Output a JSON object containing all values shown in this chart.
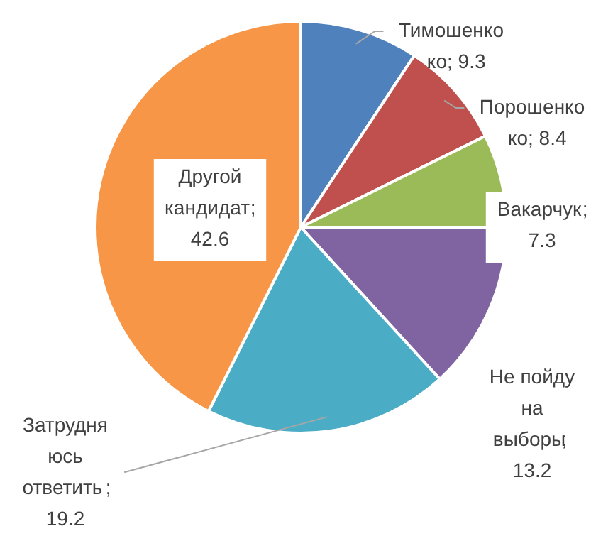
{
  "chart_data": {
    "type": "pie",
    "categories": [
      "Тимошенко\nко",
      "Порошенко\nко",
      "Вакарчук",
      "Не пойду\nна\nвыборы",
      "Затрудня\nюсь\nответить",
      "Другой\nкандидат"
    ],
    "values": [
      9.3,
      8.4,
      7.3,
      13.2,
      19.2,
      42.6
    ],
    "value_labels": [
      "; 9.3",
      "; 8.4",
      ";\n7.3",
      ";\n13.2",
      ";\n19.2",
      ";\n42.6"
    ],
    "colors": [
      "#4f81bd",
      "#c0504d",
      "#9bbb59",
      "#8064a2",
      "#4bacc6",
      "#f79646"
    ],
    "data_labels": true
  }
}
